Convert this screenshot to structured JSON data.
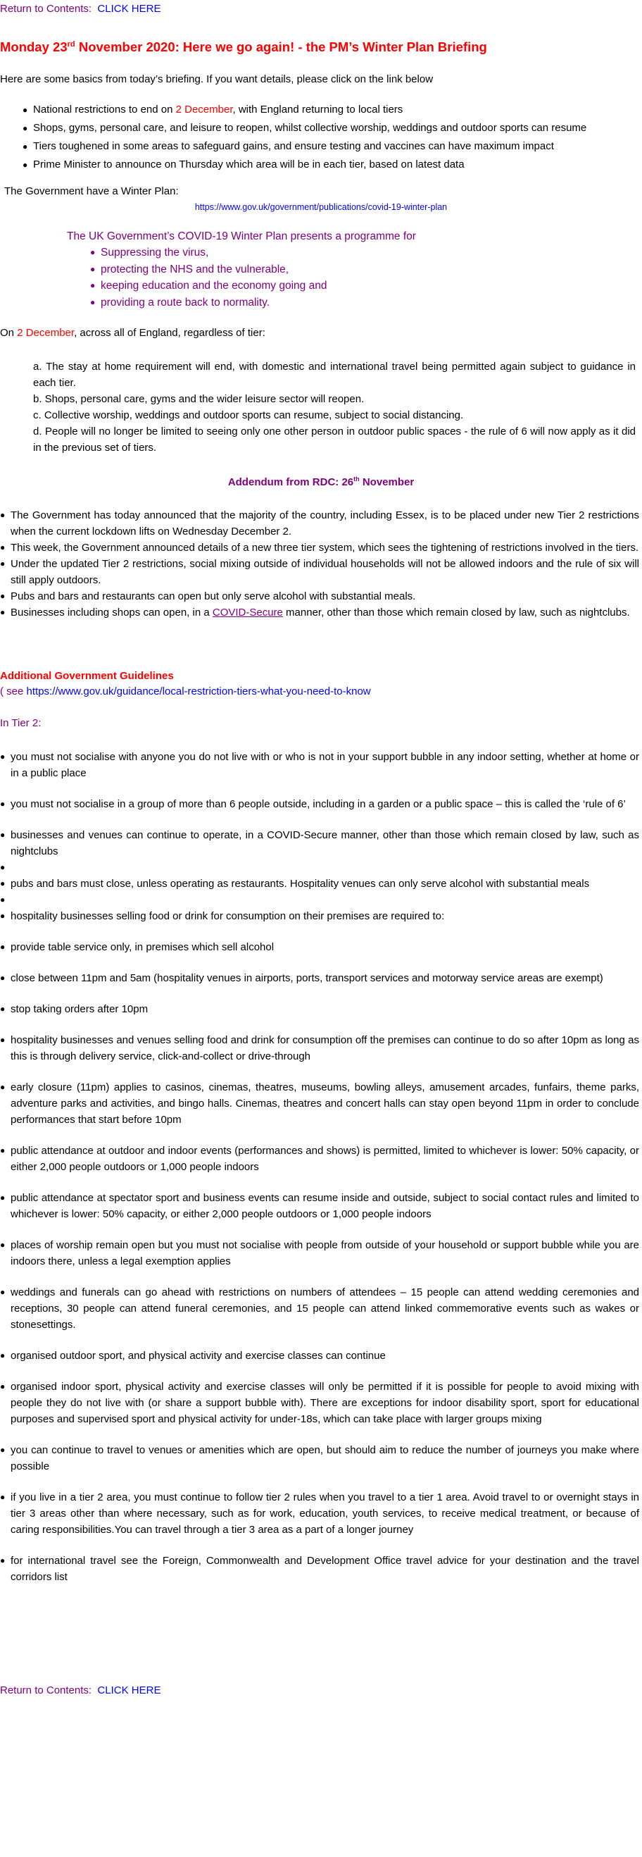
{
  "return_top": {
    "label": "Return to Contents:",
    "link": "CLICK HERE"
  },
  "title": {
    "text_1": "Monday 23",
    "sup": "rd",
    "text_2": " November 2020: Here we go again! -  the PM’s Winter Plan Briefing"
  },
  "intro": "Here are some basics from today’s briefing. If you want details, please click on the link below",
  "summary": {
    "first": {
      "before": "National restrictions to end on ",
      "highlight": "2 December",
      "after": ", with England returning to local tiers"
    },
    "rest": [
      "Shops, gyms, personal care, and leisure to reopen, whilst collective worship, weddings and outdoor sports can resume",
      "Tiers toughened in some areas to safeguard gains, and ensure testing and vaccines can have maximum impact",
      "Prime Minister to announce on Thursday which area will be in each tier, based on latest data"
    ]
  },
  "winter_plan": {
    "label": "The Government have a Winter Plan:",
    "url": "https://www.gov.uk/government/publications/covid-19-winter-plan",
    "intro": "The UK Government’s COVID-19 Winter Plan presents a programme for",
    "points": [
      "Suppressing the virus,",
      "protecting the NHS and the vulnerable,",
      "keeping education and the economy going and",
      "providing a route back to normality."
    ]
  },
  "december": {
    "prefix": "On ",
    "date": "2 December",
    "rest": ", across all of England, regardless of tier:",
    "items": [
      "a. The stay at home requirement will end, with domestic and international travel being permitted again subject to guidance in each tier.",
      "b. Shops, personal care, gyms and the wider leisure sector will reopen.",
      "c. Collective worship, weddings and outdoor sports can resume, subject to social distancing.",
      "d. People will no longer be limited to seeing only one other person in outdoor public spaces - the rule of 6 will now apply as it did in the previous set of tiers."
    ]
  },
  "addendum": {
    "heading": "Addendum  from RDC:  26",
    "sup": "th",
    "heading_end": " November",
    "bullets": [
      "The Government has today announced that the majority of the country, including Essex, is to be placed under new Tier 2 restrictions when the current lockdown lifts on Wednesday December 2.",
      "This week, the Government announced details of a new three tier system, which sees the tightening of restrictions involved in the tiers.",
      "Under the updated Tier 2 restrictions, social mixing outside of individual households will not be allowed indoors and the rule of six will still apply outdoors.",
      "Pubs and bars and restaurants can open but only serve alcohol with substantial meals."
    ],
    "last": {
      "before": "Businesses including shops can open, in a ",
      "link": "COVID-Secure",
      "after": " manner, other than those which remain closed by law, such as nightclubs."
    }
  },
  "guidelines": {
    "heading": "Additional Government Guidelines",
    "see_prefix": "( see ",
    "url": "https://www.gov.uk/guidance/local-restriction-tiers-what-you-need-to-know"
  },
  "tier2": {
    "heading": "In Tier 2:",
    "items": [
      "you must not socialise with anyone you do not live with or who is not in your support bubble in any indoor setting, whether at home or in a public place",
      "you must not socialise in a group of more than 6 people outside, including in a garden or a public space – this is called the ‘rule of 6’",
      "businesses and venues can continue to operate, in a COVID-Secure manner, other than those which remain closed by law, such as nightclubs",
      "pubs and bars must close, unless operating as restaurants. Hospitality venues can only serve alcohol with substantial meals",
      "hospitality businesses selling food or drink for consumption on their premises are required to:",
      "provide table service only, in premises which sell alcohol",
      "close between 11pm and 5am (hospitality venues in airports, ports, transport services and motorway service areas are exempt)",
      "stop taking orders after 10pm",
      "hospitality businesses and venues selling food and drink for consumption off the premises can continue to do so after 10pm as long as this is through delivery service, click-and-collect or drive-through",
      "early closure (11pm) applies to casinos, cinemas, theatres, museums, bowling alleys, amusement arcades, funfairs, theme parks, adventure parks and activities, and bingo halls. Cinemas, theatres and concert halls can stay open beyond 11pm in order to conclude performances  that start before 10pm",
      "public attendance at outdoor and indoor events (performances and shows) is permitted, limited to whichever is lower: 50% capacity, or either 2,000 people outdoors or 1,000 people indoors",
      "public attendance at spectator sport and business events can resume inside and outside, subject to social contact rules and limited to whichever is lower: 50% capacity, or either 2,000 people outdoors or 1,000 people indoors",
      "places of worship remain open but you must not socialise with people from outside of your household or support bubble while you are indoors there, unless a legal exemption applies",
      "weddings and funerals can go ahead with restrictions on numbers of attendees – 15 people can attend wedding ceremonies and receptions, 30 people can attend funeral ceremonies, and 15 people can attend linked commemorative events such as wakes  or stonesettings.",
      "organised outdoor sport, and physical activity and exercise classes can continue",
      "organised indoor sport, physical activity and exercise classes will only be permitted if it is possible for people to avoid mixing with people they do not live with (or share a support bubble with). There are exceptions for indoor disability sport, sport for educational purposes and supervised sport and physical activity for under-18s, which can take place with larger groups mixing",
      "you can continue to travel to venues or amenities which are open, but should aim to reduce the number of journeys you make where possible",
      "if you live in a tier 2 area, you must continue to follow tier 2 rules when you travel to a tier 1 area. Avoid travel to or overnight stays in tier 3 areas other than where necessary, such as for work, education, youth services, to receive medical treatment, or because of caring responsibilities.You can travel through a tier 3 area as a part of a longer journey",
      "for international travel see the Foreign, Commonwealth and Development Office travel advice for your destination and the travel corridors list"
    ]
  },
  "return_bottom": {
    "label": "Return to Contents:",
    "link": "CLICK HERE"
  }
}
